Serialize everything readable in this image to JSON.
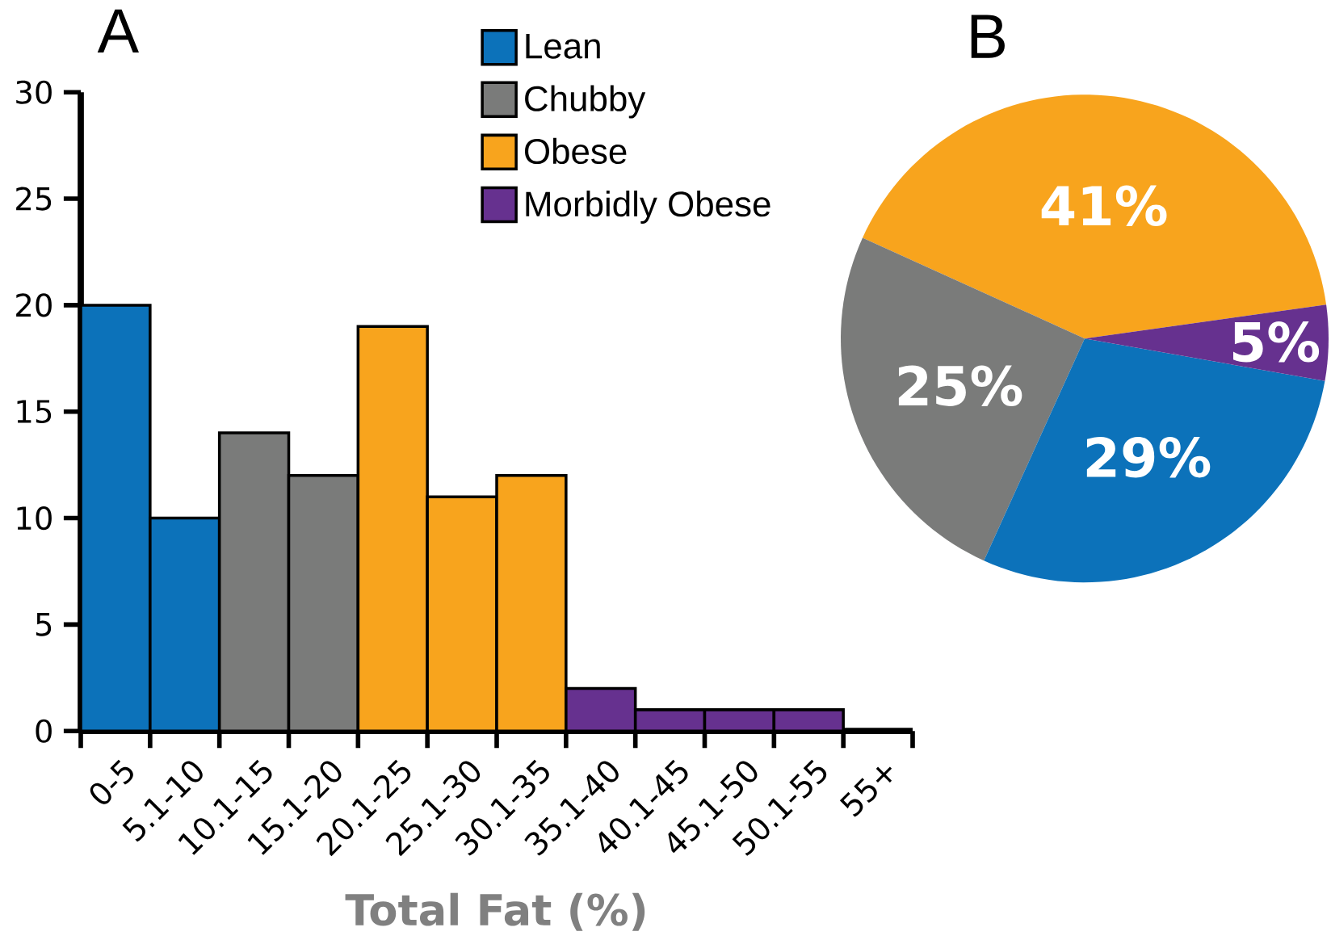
{
  "chart_data": [
    {
      "type": "bar",
      "title": "A",
      "xlabel": "Total Fat (%)",
      "categories": [
        "0-5",
        "5.1-10",
        "10.1-15",
        "15.1-20",
        "20.1-25",
        "25.1-30",
        "30.1-35",
        "35.1-40",
        "40.1-45",
        "45.1-50",
        "50.1-55",
        "55+"
      ],
      "series": [
        {
          "name": "Lean",
          "color": "#0c72ba",
          "values": [
            20,
            10,
            null,
            null,
            null,
            null,
            null,
            null,
            null,
            null,
            null,
            null
          ]
        },
        {
          "name": "Chubby",
          "color": "#7a7b7a",
          "values": [
            null,
            null,
            14,
            12,
            null,
            null,
            null,
            null,
            null,
            null,
            null,
            null
          ]
        },
        {
          "name": "Obese",
          "color": "#f8a41d",
          "values": [
            null,
            null,
            null,
            null,
            19,
            11,
            12,
            null,
            null,
            null,
            null,
            null
          ]
        },
        {
          "name": "Morbidly Obese",
          "color": "#66318f",
          "values": [
            null,
            null,
            null,
            null,
            null,
            null,
            null,
            2,
            1,
            1,
            1,
            null
          ]
        }
      ],
      "ylim": [
        0,
        30
      ],
      "yticks": [
        0,
        5,
        10,
        15,
        20,
        25,
        30
      ],
      "legend": "top"
    },
    {
      "type": "pie",
      "title": "B",
      "categories": [
        null,
        null,
        null,
        null
      ],
      "values": [
        41,
        25,
        29,
        5
      ],
      "colors": [
        "#f8a41d",
        "#7a7b7a",
        "#0c72ba",
        "#66318f"
      ],
      "value_labels": [
        "41%",
        "25%",
        "29%",
        "5%"
      ]
    }
  ]
}
